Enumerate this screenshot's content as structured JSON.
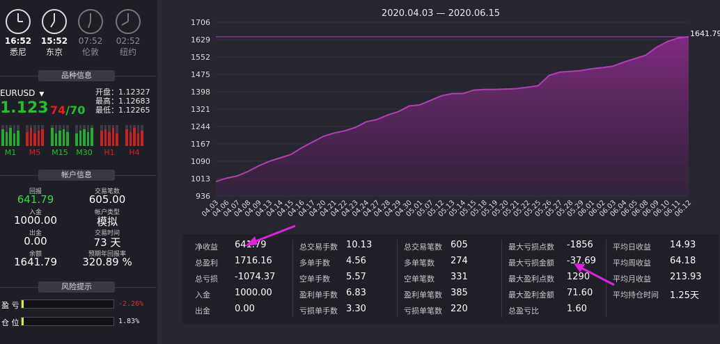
{
  "clocks": [
    {
      "time": "16:52",
      "city": "悉尼",
      "dim": false
    },
    {
      "time": "15:52",
      "city": "东京",
      "dim": false
    },
    {
      "time": "07:52",
      "city": "伦敦",
      "dim": true
    },
    {
      "time": "02:52",
      "city": "纽约",
      "dim": true
    }
  ],
  "sections": {
    "symbol_info": "品种信息",
    "account_info": "帐户信息",
    "risk": "风险提示"
  },
  "symbol": {
    "name": "EURUSD",
    "price": "1.123",
    "spread_a": "74",
    "spread_sep": "/",
    "spread_b": "70",
    "open": "开盘：1.12327",
    "high": "最高：1.12683",
    "low": "最低：1.12265"
  },
  "timeframes": [
    "M1",
    "M5",
    "M15",
    "M30",
    "H1",
    "H4"
  ],
  "timeframe_colors": [
    "#20c030",
    "#e02020",
    "#20c030",
    "#20c030",
    "#e02020",
    "#e02020"
  ],
  "account": {
    "profit_label": "回报",
    "profit_value": "641.79",
    "trades_label": "交易笔数",
    "trades_value": "605.00",
    "deposit_label": "入金",
    "deposit_value": "1000.00",
    "type_label": "帐户类型",
    "type_value": "模拟",
    "withdraw_label": "出金",
    "withdraw_value": "0.00",
    "time_label": "交易时间",
    "time_value": "73 天",
    "balance_label": "余额",
    "balance_value": "1641.79",
    "annual_label": "预期年回报率",
    "annual_value": "320.89 %"
  },
  "risk": {
    "loss_label": "盈  亏",
    "loss_value": "-2.26%",
    "position_label": "仓  位",
    "position_value": "1.83%",
    "loss_fraction": 0.02,
    "position_fraction": 0.02
  },
  "chart_data": {
    "type": "area",
    "title": "2020.04.03 — 2020.06.15",
    "y_ticks": [
      "1706",
      "1629",
      "1552",
      "1475",
      "1398",
      "1321",
      "1244",
      "1167",
      "1090",
      "1013",
      "936"
    ],
    "ylim": [
      936,
      1706
    ],
    "last_label": "1641.79",
    "x_labels": [
      "04.03",
      "04.06",
      "04.07",
      "04.08",
      "04.09",
      "04.13",
      "04.14",
      "04.15",
      "04.16",
      "04.17",
      "04.20",
      "04.21",
      "04.22",
      "04.23",
      "04.24",
      "04.27",
      "04.28",
      "04.29",
      "04.30",
      "05.01",
      "05.07",
      "05.12",
      "05.13",
      "05.14",
      "05.15",
      "05.18",
      "05.19",
      "05.20",
      "05.21",
      "05.22",
      "05.25",
      "05.26",
      "05.27",
      "05.28",
      "05.29",
      "06.01",
      "06.02",
      "06.03",
      "06.04",
      "06.05",
      "06.08",
      "06.09",
      "06.10",
      "06.11",
      "06.12"
    ],
    "values": [
      1000,
      1015,
      1025,
      1045,
      1070,
      1090,
      1105,
      1120,
      1150,
      1175,
      1200,
      1215,
      1225,
      1240,
      1265,
      1275,
      1295,
      1310,
      1335,
      1340,
      1360,
      1380,
      1390,
      1390,
      1405,
      1408,
      1408,
      1410,
      1412,
      1418,
      1425,
      1470,
      1485,
      1488,
      1492,
      1500,
      1505,
      1512,
      1530,
      1545,
      1560,
      1595,
      1620,
      1636,
      1641.79
    ],
    "accent": "#b040b0"
  },
  "stats": [
    [
      {
        "label": "净收益",
        "value": "641.79"
      },
      {
        "label": "总盈利",
        "value": "1716.16"
      },
      {
        "label": "总亏损",
        "value": "-1074.37"
      },
      {
        "label": "入金",
        "value": "1000.00"
      },
      {
        "label": "出金",
        "value": "0.00"
      }
    ],
    [
      {
        "label": "总交易手数",
        "value": "10.13"
      },
      {
        "label": "多单手数",
        "value": "4.56"
      },
      {
        "label": "空单手数",
        "value": "5.57"
      },
      {
        "label": "盈利单手数",
        "value": "6.83"
      },
      {
        "label": "亏损单手数",
        "value": "3.30"
      }
    ],
    [
      {
        "label": "总交易笔数",
        "value": "605"
      },
      {
        "label": "多单笔数",
        "value": "274"
      },
      {
        "label": "空单笔数",
        "value": "331"
      },
      {
        "label": "盈利单笔数",
        "value": "385"
      },
      {
        "label": "亏损单笔数",
        "value": "220"
      }
    ],
    [
      {
        "label": "最大亏损点数",
        "value": "-1856"
      },
      {
        "label": "最大亏损金额",
        "value": "-37.69"
      },
      {
        "label": "最大盈利点数",
        "value": "1290"
      },
      {
        "label": "最大盈利金额",
        "value": "71.60"
      },
      {
        "label": "总盈亏比",
        "value": "1.60"
      }
    ],
    [
      {
        "label": "平均日收益",
        "value": "14.93"
      },
      {
        "label": "平均周收益",
        "value": "64.18"
      },
      {
        "label": "平均月收益",
        "value": "213.93"
      },
      {
        "label": "平均持仓时间",
        "value": "1.25天"
      }
    ]
  ]
}
